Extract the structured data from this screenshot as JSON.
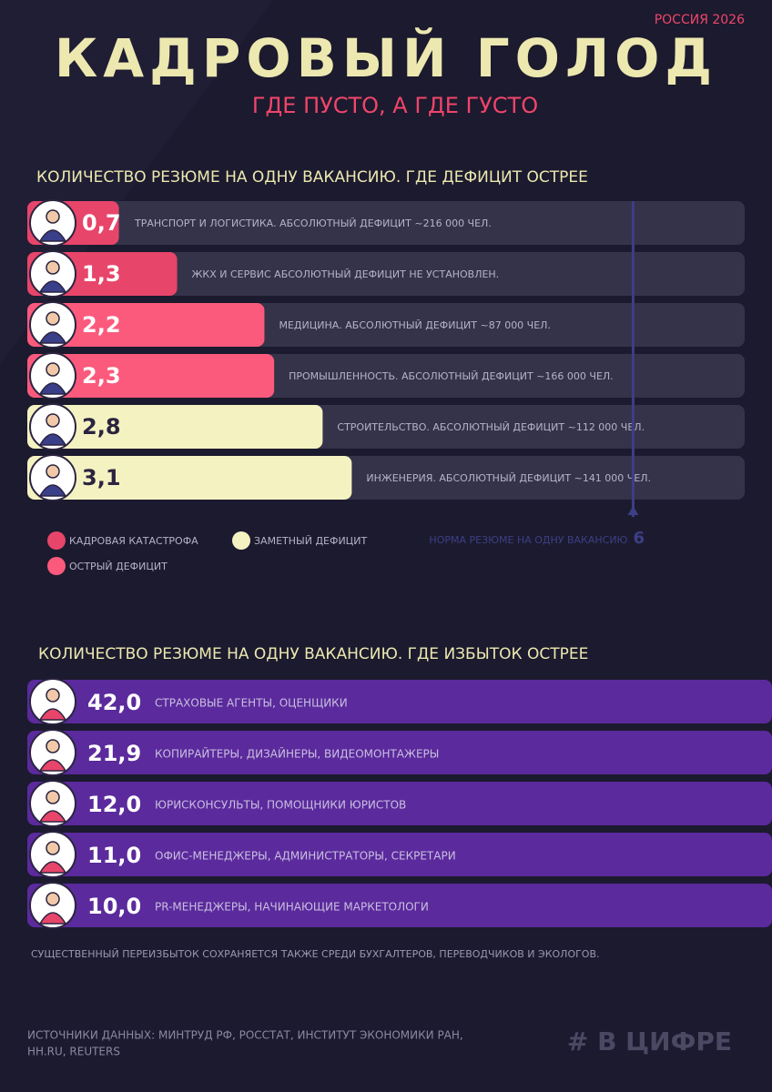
{
  "header": {
    "badge": "РОССИЯ 2026",
    "title": "КАДРОВЫЙ ГОЛОД",
    "subtitle": "ГДЕ ПУСТО, А ГДЕ ГУСТО"
  },
  "chart_data": [
    {
      "type": "bar",
      "orientation": "horizontal",
      "title": "КОЛИЧЕСТВО РЕЗЮМЕ НА ОДНУ ВАКАНСИЮ. ГДЕ ДЕФИЦИТ ОСТРЕЕ",
      "categories": [
        "ТРАНСПОРТ И ЛОГИСТИКА. АБСОЛЮТНЫЙ ДЕФИЦИТ ~216 000 ЧЕЛ.",
        "ЖКХ И СЕРВИС АБСОЛЮТНЫЙ ДЕФИЦИТ НЕ УСТАНОВЛЕН.",
        "МЕДИЦИНА. АБСОЛЮТНЫЙ ДЕФИЦИТ ~87 000 ЧЕЛ.",
        "ПРОМЫШЛЕННОСТЬ. АБСОЛЮТНЫЙ ДЕФИЦИТ ~166 000 ЧЕЛ.",
        "СТРОИТЕЛЬСТВО. АБСОЛЮТНЫЙ ДЕФИЦИТ ~112 000 ЧЕЛ.",
        "ИНЖЕНЕРИЯ. АБСОЛЮТНЫЙ ДЕФИЦИТ ~141 000 ЧЕЛ."
      ],
      "values": [
        0.7,
        1.3,
        2.2,
        2.3,
        2.8,
        3.1
      ],
      "value_labels": [
        "0,7",
        "1,3",
        "2,2",
        "2,3",
        "2,8",
        "3,1"
      ],
      "colors": [
        "#e8456a",
        "#e8456a",
        "#fb5a7c",
        "#fb5a7c",
        "#f5f2c2",
        "#f5f2c2"
      ],
      "xlim": [
        0,
        7.15
      ],
      "legend": [
        {
          "name": "КАДРОВАЯ КАТАСТРОФА",
          "color": "#e8456a"
        },
        {
          "name": "ОСТРЫЙ ДЕФИЦИТ",
          "color": "#fb5a7c"
        },
        {
          "name": "ЗАМЕТНЫЙ ДЕФИЦИТ",
          "color": "#f5f2c2"
        }
      ],
      "reference_line": {
        "value": 6,
        "label": "НОРМА РЕЗЮМЕ НА ОДНУ ВАКАНСИЮ",
        "color": "#3c3f86"
      }
    },
    {
      "type": "bar",
      "orientation": "horizontal",
      "title": "КОЛИЧЕСТВО РЕЗЮМЕ НА ОДНУ ВАКАНСИЮ. ГДЕ ИЗБЫТОК ОСТРЕЕ",
      "categories": [
        "СТРАХОВЫЕ АГЕНТЫ, ОЦЕНЩИКИ",
        "КОПИРАЙТЕРЫ, ДИЗАЙНЕРЫ, ВИДЕОМОНТАЖЕРЫ",
        "ЮРИСКОНСУЛЬТЫ, ПОМОЩНИКИ ЮРИСТОВ",
        "ОФИС-МЕНЕДЖЕРЫ, АДМИНИСТРАТОРЫ, СЕКРЕТАРИ",
        "PR-МЕНЕДЖЕРЫ, НАЧИНАЮЩИЕ МАРКЕТОЛОГИ"
      ],
      "values": [
        42.0,
        21.9,
        12.0,
        11.0,
        10.0
      ],
      "value_labels": [
        "42,0",
        "21,9",
        "12,0",
        "11,0",
        "10,0"
      ],
      "color": "#5b2a9c",
      "note": "СУЩЕСТВЕННЫЙ ПЕРЕИЗБЫТОК СОХРАНЯЕТСЯ ТАКЖЕ СРЕДИ БУХГАЛТЕРОВ, ПЕРЕВОДЧИКОВ И ЭКОЛОГОВ."
    }
  ],
  "footer": {
    "sources": [
      "ИСТОЧНИКИ ДАННЫХ: МИНТРУД РФ, РОССТАТ, ИНСТИТУТ ЭКОНОМИКИ РАН,",
      "HH.RU, REUTERS"
    ],
    "logo": "# В ЦИФРЕ"
  }
}
